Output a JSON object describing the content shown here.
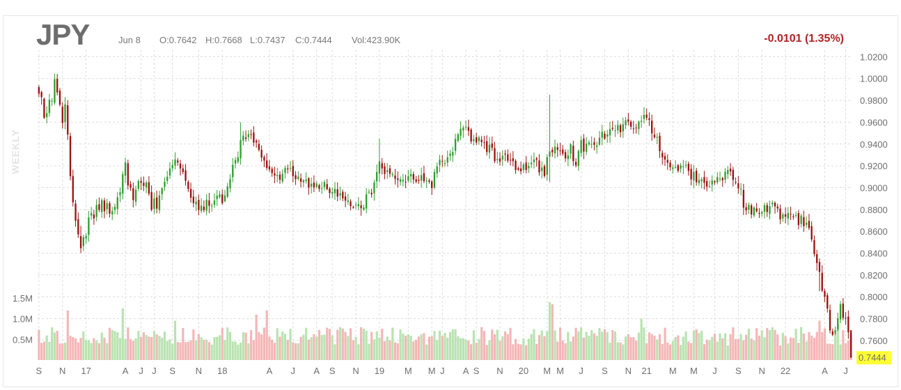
{
  "header": {
    "symbol": "JPY",
    "date": "Jun 8",
    "open": "O:0.7642",
    "high": "H:0.7668",
    "low": "L:0.7437",
    "close": "C:0.7444",
    "volume": "Vol:423.90K",
    "change": "-0.0101 (1.35%)",
    "period": "WEEKLY"
  },
  "colors": {
    "up": "#2f9e2f",
    "down": "#9b1111",
    "up_volume": "#b8e3b0",
    "down_volume": "#f4b6b6",
    "change": "#b22222",
    "last_price_highlight": "#ffff33",
    "grid": "#dcdcdc"
  },
  "chart_data": {
    "type": "candlestick",
    "period": "weekly",
    "y_ticks": [
      "1.0200",
      "1.0000",
      "0.9800",
      "0.9600",
      "0.9400",
      "0.9200",
      "0.9000",
      "0.8800",
      "0.8600",
      "0.8400",
      "0.8200",
      "0.8000",
      "0.7800",
      "0.7600"
    ],
    "ylim": [
      0.742,
      1.026
    ],
    "last_price": "0.7444",
    "volume_ticks": [
      "1.5M",
      "1.0M",
      "0.5M"
    ],
    "volume_ylim": [
      0,
      1.8
    ],
    "x_ticks": [
      "S",
      "N",
      "17",
      "A",
      "J",
      "J",
      "S",
      "N",
      "18",
      "A",
      "J",
      "A",
      "S",
      "N",
      "19",
      "M",
      "M",
      "J",
      "A",
      "S",
      "N",
      "20",
      "M",
      "M",
      "J",
      "S",
      "N",
      "21",
      "M",
      "M",
      "J",
      "S",
      "N",
      "22",
      "A",
      "J"
    ],
    "x_tick_weeks": [
      0,
      9,
      18,
      33,
      39,
      44,
      51,
      61,
      70,
      88,
      97,
      106,
      112,
      121,
      130,
      141,
      150,
      154,
      163,
      167,
      176,
      185,
      194,
      199,
      207,
      216,
      225,
      232,
      242,
      250,
      258,
      267,
      276,
      285,
      300,
      308
    ],
    "weeks": 311,
    "anchors": [
      [
        0,
        0.99
      ],
      [
        2,
        0.965
      ],
      [
        5,
        0.985
      ],
      [
        6,
        0.995
      ],
      [
        7,
        0.985
      ],
      [
        9,
        0.965
      ],
      [
        10,
        0.98
      ],
      [
        11,
        0.945
      ],
      [
        12,
        0.905
      ],
      [
        13,
        0.885
      ],
      [
        14,
        0.87
      ],
      [
        16,
        0.85
      ],
      [
        18,
        0.86
      ],
      [
        20,
        0.875
      ],
      [
        24,
        0.885
      ],
      [
        28,
        0.88
      ],
      [
        31,
        0.9
      ],
      [
        33,
        0.92
      ],
      [
        34,
        0.905
      ],
      [
        36,
        0.89
      ],
      [
        38,
        0.905
      ],
      [
        41,
        0.905
      ],
      [
        43,
        0.885
      ],
      [
        45,
        0.885
      ],
      [
        47,
        0.9
      ],
      [
        50,
        0.92
      ],
      [
        52,
        0.925
      ],
      [
        54,
        0.915
      ],
      [
        56,
        0.905
      ],
      [
        58,
        0.895
      ],
      [
        61,
        0.885
      ],
      [
        63,
        0.885
      ],
      [
        66,
        0.885
      ],
      [
        68,
        0.89
      ],
      [
        70,
        0.89
      ],
      [
        74,
        0.92
      ],
      [
        77,
        0.94
      ],
      [
        79,
        0.948
      ],
      [
        82,
        0.945
      ],
      [
        84,
        0.935
      ],
      [
        86,
        0.925
      ],
      [
        89,
        0.915
      ],
      [
        92,
        0.91
      ],
      [
        95,
        0.915
      ],
      [
        99,
        0.91
      ],
      [
        102,
        0.905
      ],
      [
        106,
        0.905
      ],
      [
        109,
        0.9
      ],
      [
        112,
        0.895
      ],
      [
        115,
        0.895
      ],
      [
        118,
        0.888
      ],
      [
        121,
        0.885
      ],
      [
        124,
        0.885
      ],
      [
        127,
        0.895
      ],
      [
        130,
        0.925
      ],
      [
        132,
        0.915
      ],
      [
        135,
        0.915
      ],
      [
        138,
        0.91
      ],
      [
        141,
        0.905
      ],
      [
        144,
        0.91
      ],
      [
        147,
        0.905
      ],
      [
        150,
        0.905
      ],
      [
        152,
        0.918
      ],
      [
        155,
        0.925
      ],
      [
        158,
        0.935
      ],
      [
        161,
        0.948
      ],
      [
        163,
        0.955
      ],
      [
        165,
        0.948
      ],
      [
        168,
        0.94
      ],
      [
        172,
        0.935
      ],
      [
        175,
        0.925
      ],
      [
        179,
        0.925
      ],
      [
        182,
        0.92
      ],
      [
        185,
        0.92
      ],
      [
        188,
        0.925
      ],
      [
        190,
        0.92
      ],
      [
        193,
        0.915
      ],
      [
        195,
        0.935
      ],
      [
        197,
        0.94
      ],
      [
        199,
        0.935
      ],
      [
        201,
        0.93
      ],
      [
        203,
        0.935
      ],
      [
        205,
        0.925
      ],
      [
        207,
        0.938
      ],
      [
        210,
        0.94
      ],
      [
        214,
        0.945
      ],
      [
        217,
        0.95
      ],
      [
        220,
        0.955
      ],
      [
        223,
        0.955
      ],
      [
        226,
        0.958
      ],
      [
        229,
        0.962
      ],
      [
        232,
        0.965
      ],
      [
        234,
        0.955
      ],
      [
        236,
        0.945
      ],
      [
        238,
        0.93
      ],
      [
        240,
        0.92
      ],
      [
        242,
        0.915
      ],
      [
        245,
        0.92
      ],
      [
        248,
        0.915
      ],
      [
        251,
        0.91
      ],
      [
        254,
        0.905
      ],
      [
        257,
        0.908
      ],
      [
        260,
        0.91
      ],
      [
        263,
        0.912
      ],
      [
        266,
        0.91
      ],
      [
        268,
        0.895
      ],
      [
        270,
        0.88
      ],
      [
        273,
        0.878
      ],
      [
        276,
        0.88
      ],
      [
        279,
        0.884
      ],
      [
        282,
        0.875
      ],
      [
        285,
        0.872
      ],
      [
        288,
        0.875
      ],
      [
        291,
        0.87
      ],
      [
        294,
        0.868
      ],
      [
        296,
        0.845
      ],
      [
        298,
        0.82
      ],
      [
        300,
        0.795
      ],
      [
        302,
        0.775
      ],
      [
        304,
        0.765
      ],
      [
        306,
        0.788
      ],
      [
        308,
        0.78
      ],
      [
        309,
        0.764
      ],
      [
        310,
        0.744
      ]
    ],
    "events": [
      [
        195,
        0.985,
        0.905
      ],
      [
        6,
        1.004,
        0.98
      ],
      [
        16,
        0.865,
        0.842
      ],
      [
        77,
        0.96,
        0.935
      ],
      [
        130,
        0.945,
        0.905
      ],
      [
        298,
        0.82,
        0.805
      ]
    ],
    "volume_spikes": [
      [
        11,
        1.2
      ],
      [
        32,
        1.25
      ],
      [
        52,
        0.95
      ],
      [
        83,
        1.1
      ],
      [
        87,
        1.2
      ],
      [
        195,
        1.4
      ],
      [
        196,
        1.35
      ],
      [
        230,
        1.0
      ],
      [
        298,
        0.95
      ],
      [
        305,
        0.85
      ]
    ]
  }
}
